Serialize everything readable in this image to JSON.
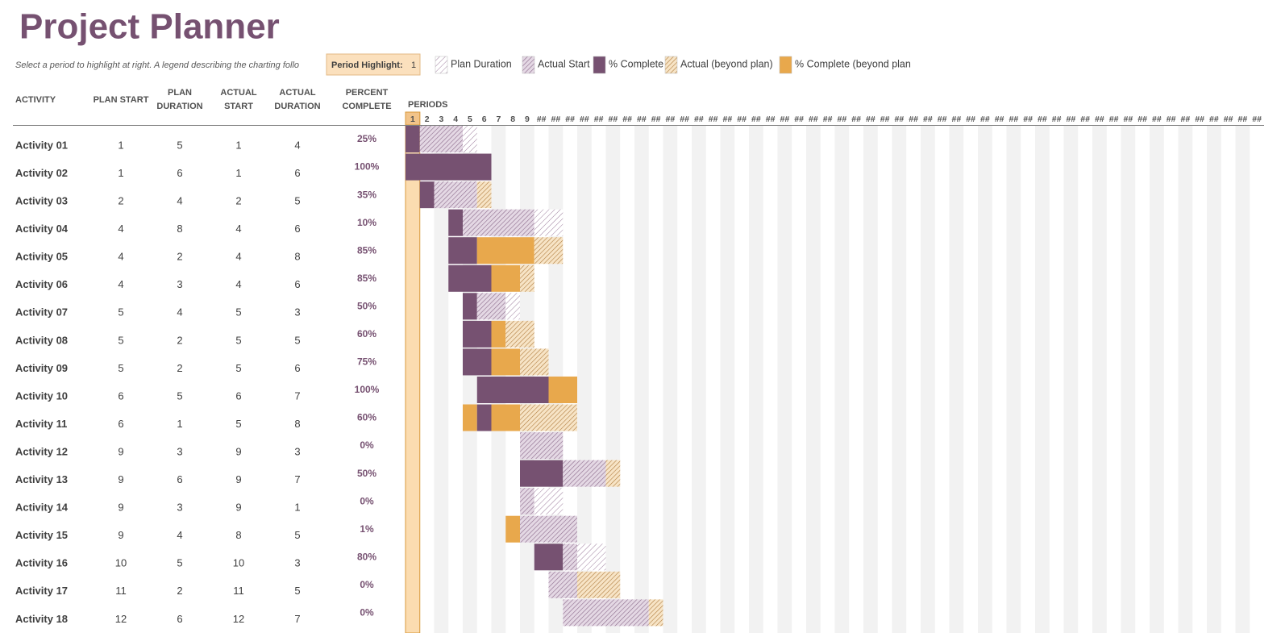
{
  "title": "Project Planner",
  "instructions": "Select a period to highlight at right.  A legend describing the charting follo",
  "period_highlight": {
    "label": "Period Highlight:",
    "value": 1
  },
  "legend": [
    "Plan Duration",
    "Actual Start",
    "% Complete",
    "Actual (beyond plan)",
    "% Complete (beyond plan"
  ],
  "columns": [
    [
      "ACTIVITY"
    ],
    [
      "PLAN START"
    ],
    [
      "PLAN",
      "DURATION"
    ],
    [
      "ACTUAL",
      "START"
    ],
    [
      "ACTUAL",
      "DURATION"
    ],
    [
      "PERCENT",
      "COMPLETE"
    ]
  ],
  "periods_label": "PERIODS",
  "periods": [
    "1",
    "2",
    "3",
    "4",
    "5",
    "6",
    "7",
    "8",
    "9",
    "##",
    "##",
    "##",
    "##",
    "##",
    "##",
    "##",
    "##",
    "##",
    "##",
    "##",
    "##",
    "##",
    "##",
    "##",
    "##",
    "##",
    "##",
    "##",
    "##",
    "##",
    "##",
    "##",
    "##",
    "##",
    "##",
    "##",
    "##",
    "##",
    "##",
    "##",
    "##",
    "##",
    "##",
    "##",
    "##",
    "##",
    "##",
    "##",
    "##",
    "##",
    "##",
    "##",
    "##",
    "##",
    "##",
    "##",
    "##",
    "##",
    "##",
    "##"
  ],
  "rows": [
    {
      "name": "Activity 01",
      "plan_start": 1,
      "plan_duration": 5,
      "actual_start": 1,
      "actual_duration": 4,
      "percent_complete": 25,
      "percent_label": "25%"
    },
    {
      "name": "Activity 02",
      "plan_start": 1,
      "plan_duration": 6,
      "actual_start": 1,
      "actual_duration": 6,
      "percent_complete": 100,
      "percent_label": "100%"
    },
    {
      "name": "Activity 03",
      "plan_start": 2,
      "plan_duration": 4,
      "actual_start": 2,
      "actual_duration": 5,
      "percent_complete": 35,
      "percent_label": "35%"
    },
    {
      "name": "Activity 04",
      "plan_start": 4,
      "plan_duration": 8,
      "actual_start": 4,
      "actual_duration": 6,
      "percent_complete": 10,
      "percent_label": "10%"
    },
    {
      "name": "Activity 05",
      "plan_start": 4,
      "plan_duration": 2,
      "actual_start": 4,
      "actual_duration": 8,
      "percent_complete": 85,
      "percent_label": "85%"
    },
    {
      "name": "Activity 06",
      "plan_start": 4,
      "plan_duration": 3,
      "actual_start": 4,
      "actual_duration": 6,
      "percent_complete": 85,
      "percent_label": "85%"
    },
    {
      "name": "Activity 07",
      "plan_start": 5,
      "plan_duration": 4,
      "actual_start": 5,
      "actual_duration": 3,
      "percent_complete": 50,
      "percent_label": "50%"
    },
    {
      "name": "Activity 08",
      "plan_start": 5,
      "plan_duration": 2,
      "actual_start": 5,
      "actual_duration": 5,
      "percent_complete": 60,
      "percent_label": "60%"
    },
    {
      "name": "Activity 09",
      "plan_start": 5,
      "plan_duration": 2,
      "actual_start": 5,
      "actual_duration": 6,
      "percent_complete": 75,
      "percent_label": "75%"
    },
    {
      "name": "Activity 10",
      "plan_start": 6,
      "plan_duration": 5,
      "actual_start": 6,
      "actual_duration": 7,
      "percent_complete": 100,
      "percent_label": "100%"
    },
    {
      "name": "Activity 11",
      "plan_start": 6,
      "plan_duration": 1,
      "actual_start": 5,
      "actual_duration": 8,
      "percent_complete": 60,
      "percent_label": "60%"
    },
    {
      "name": "Activity 12",
      "plan_start": 9,
      "plan_duration": 3,
      "actual_start": 9,
      "actual_duration": 3,
      "percent_complete": 0,
      "percent_label": "0%"
    },
    {
      "name": "Activity 13",
      "plan_start": 9,
      "plan_duration": 6,
      "actual_start": 9,
      "actual_duration": 7,
      "percent_complete": 50,
      "percent_label": "50%"
    },
    {
      "name": "Activity 14",
      "plan_start": 9,
      "plan_duration": 3,
      "actual_start": 9,
      "actual_duration": 1,
      "percent_complete": 0,
      "percent_label": "0%"
    },
    {
      "name": "Activity 15",
      "plan_start": 9,
      "plan_duration": 4,
      "actual_start": 8,
      "actual_duration": 5,
      "percent_complete": 1,
      "percent_label": "1%"
    },
    {
      "name": "Activity 16",
      "plan_start": 10,
      "plan_duration": 5,
      "actual_start": 10,
      "actual_duration": 3,
      "percent_complete": 80,
      "percent_label": "80%"
    },
    {
      "name": "Activity 17",
      "plan_start": 11,
      "plan_duration": 2,
      "actual_start": 11,
      "actual_duration": 5,
      "percent_complete": 0,
      "percent_label": "0%"
    },
    {
      "name": "Activity 18",
      "plan_start": 12,
      "plan_duration": 6,
      "actual_start": 12,
      "actual_duration": 7,
      "percent_complete": 0,
      "percent_label": "0%"
    }
  ]
}
